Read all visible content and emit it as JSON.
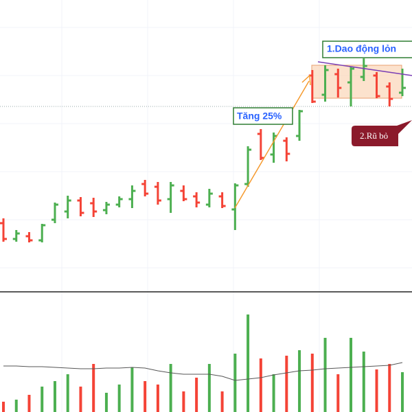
{
  "chart_data": {
    "type": "ohlc",
    "annotations": [
      "Tăng 25%",
      "1.Dao động lỏn",
      "2.Rũ bỏ"
    ],
    "up_color": "#4caf50",
    "down_color": "#f44336",
    "ylim": [
      0,
      425
    ],
    "y2lim": [
      0,
      175
    ],
    "open": [
      100,
      77,
      81,
      75,
      105,
      117,
      133,
      129,
      119,
      127,
      135,
      157,
      153,
      135,
      147,
      139,
      127,
      139,
      120,
      157,
      230,
      200,
      220,
      227,
      315,
      287,
      317,
      305,
      313,
      315,
      299,
      290
    ],
    "high": [
      107,
      90,
      87,
      99,
      130,
      140,
      138,
      137,
      131,
      139,
      155,
      163,
      160,
      160,
      155,
      145,
      150,
      145,
      158,
      212,
      237,
      232,
      225,
      265,
      323,
      330,
      325,
      328,
      340,
      320,
      305,
      325
    ],
    "low": [
      73,
      73,
      72,
      72,
      100,
      107,
      110,
      109,
      113,
      123,
      122,
      139,
      127,
      115,
      132,
      123,
      123,
      122,
      90,
      153,
      192,
      188,
      190,
      220,
      275,
      277,
      283,
      270,
      307,
      282,
      270,
      285
    ],
    "close": [
      77,
      85,
      75,
      97,
      127,
      133,
      115,
      117,
      127,
      135,
      147,
      143,
      133,
      155,
      135,
      130,
      143,
      125,
      155,
      207,
      195,
      227,
      201,
      263,
      277,
      323,
      297,
      325,
      329,
      285,
      281,
      297
    ],
    "volume": [
      15,
      18,
      25,
      37,
      45,
      55,
      37,
      70,
      28,
      40,
      65,
      45,
      40,
      70,
      30,
      50,
      70,
      30,
      85,
      142,
      78,
      55,
      82,
      90,
      85,
      108,
      55,
      108,
      88,
      62,
      70,
      58
    ],
    "volume_ma": {
      "color": "#555555",
      "values": [
        67,
        67,
        66,
        66,
        65,
        64,
        63,
        63,
        64,
        64,
        65,
        64,
        60,
        57,
        55,
        55,
        55,
        52,
        46,
        48,
        50,
        54,
        57,
        60,
        61,
        63,
        64,
        65,
        66,
        67,
        68,
        72
      ]
    }
  }
}
